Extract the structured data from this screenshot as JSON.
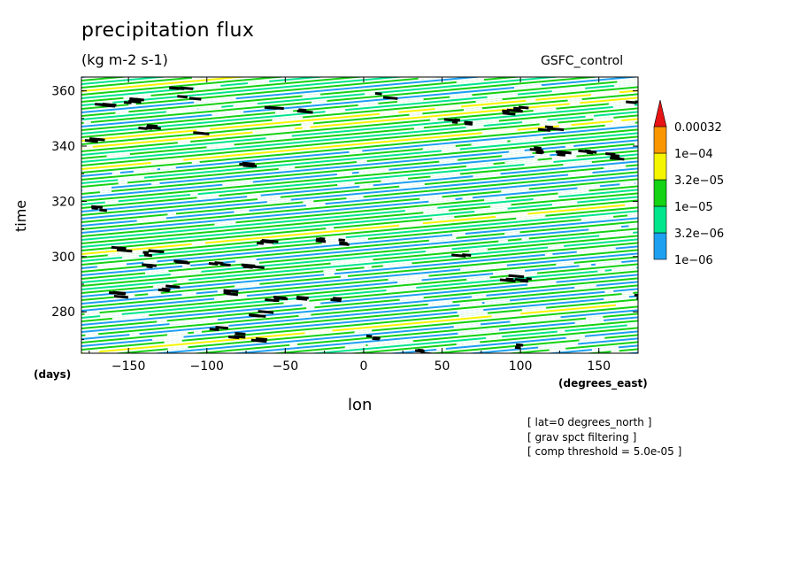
{
  "chart_data": {
    "type": "heatmap",
    "title": "precipitation flux",
    "units": "(kg m-2 s-1)",
    "dataset": "GSFC_control",
    "xlabel": "lon",
    "ylabel": "time",
    "x_units": "(degrees_east)",
    "y_units": "(days)",
    "xlim": [
      -180,
      175
    ],
    "ylim": [
      265,
      365
    ],
    "x_ticks": [
      -150,
      -100,
      -50,
      0,
      50,
      100,
      150
    ],
    "y_ticks": [
      280,
      300,
      320,
      340,
      360
    ],
    "colorbar": {
      "levels": [
        "0.00032",
        "1e-04",
        "3.2e-05",
        "1e-05",
        "3.2e-06",
        "1e-06"
      ],
      "colors": [
        "#1ea0f0",
        "#00e68c",
        "#14d214",
        "#f5f500",
        "#fa9600",
        "#e61414"
      ],
      "extend": "max"
    },
    "pattern": {
      "description": "eastward-propagating streaks (tilted bands)",
      "band_slope_days_per_deg": -0.04
    },
    "notes": [
      "[ lat=0 degrees_north ]",
      "[ grav spct filtering ]",
      "[ comp threshold = 5.0e-05 ]"
    ]
  }
}
